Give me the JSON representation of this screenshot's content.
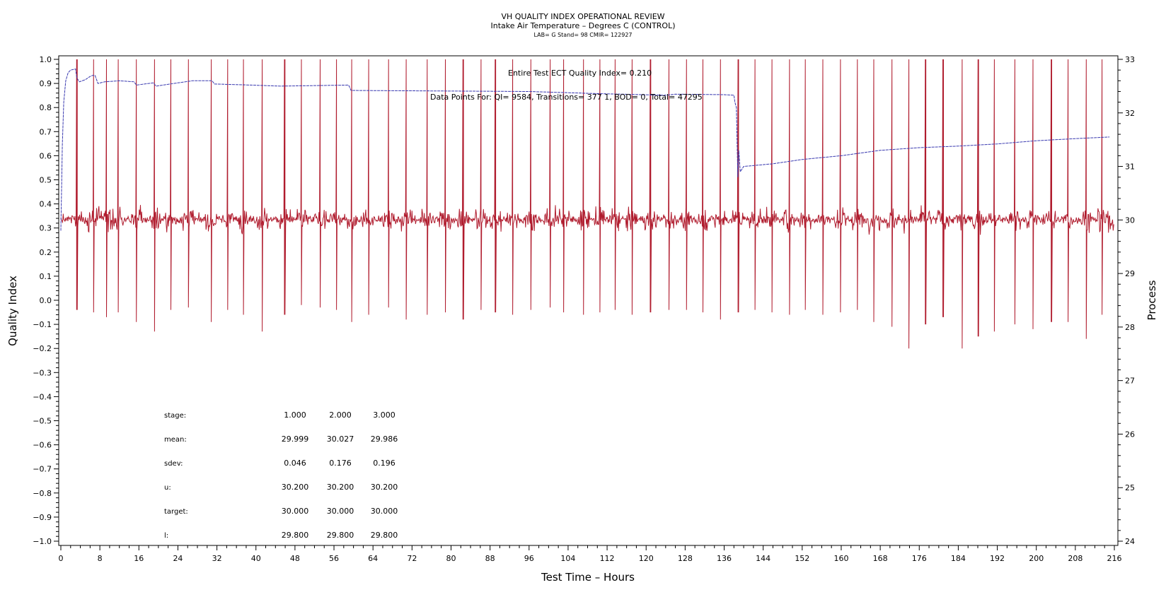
{
  "chart_data": {
    "type": "line",
    "title": "VH QUALITY INDEX OPERATIONAL REVIEW",
    "subtitle": "Intake Air Temperature – Degrees C (CONTROL)",
    "info_line": "LAB= G Stand= 98 CMIR= 122927",
    "xlabel": "Test Time – Hours",
    "ylabel": "Quality Index",
    "y2label": "Process",
    "xlim": [
      0,
      216
    ],
    "ylim": [
      -1.0,
      1.0
    ],
    "y2lim": [
      24,
      33
    ],
    "x_ticks": [
      0,
      8,
      16,
      24,
      32,
      40,
      48,
      56,
      64,
      72,
      80,
      88,
      96,
      104,
      112,
      120,
      128,
      136,
      144,
      152,
      160,
      168,
      176,
      184,
      192,
      200,
      208,
      216
    ],
    "y_ticks": [
      "1.0",
      "0.9",
      "0.8",
      "0.7",
      "0.6",
      "0.5",
      "0.4",
      "0.3",
      "0.2",
      "0.1",
      "0.0",
      "−0.1",
      "−0.2",
      "−0.3",
      "−0.4",
      "−0.5",
      "−0.6",
      "−0.7",
      "−0.8",
      "−0.9",
      "−1.0"
    ],
    "y2_ticks": [
      33,
      32,
      31,
      30,
      29,
      28,
      27,
      26,
      25,
      24
    ],
    "annotations": {
      "quality_index": "Entire Test ECT Quality Index=   0.210",
      "data_points": "Data Points For: QI=  9584, Transitions= 377 1, BOD=     0, Total= 47295"
    },
    "series": [
      {
        "axis": "right",
        "color": "#3a3ab0",
        "points": [
          [
            0,
            29.8
          ],
          [
            0.3,
            31.4
          ],
          [
            0.6,
            32.2
          ],
          [
            1,
            32.6
          ],
          [
            1.5,
            32.75
          ],
          [
            2,
            32.8
          ],
          [
            3,
            32.82
          ],
          [
            3.3,
            32.65
          ],
          [
            3.8,
            32.58
          ],
          [
            5,
            32.62
          ],
          [
            6,
            32.68
          ],
          [
            6.5,
            32.7
          ],
          [
            7,
            32.7
          ],
          [
            7.6,
            32.55
          ],
          [
            9,
            32.58
          ],
          [
            12,
            32.6
          ],
          [
            15,
            32.58
          ],
          [
            15.5,
            32.52
          ],
          [
            19,
            32.56
          ],
          [
            19.5,
            32.5
          ],
          [
            24,
            32.56
          ],
          [
            27,
            32.6
          ],
          [
            31,
            32.6
          ],
          [
            31.5,
            32.54
          ],
          [
            39,
            32.52
          ],
          [
            45,
            32.5
          ],
          [
            59,
            32.52
          ],
          [
            59.5,
            32.42
          ],
          [
            76,
            32.41
          ],
          [
            96,
            32.4
          ],
          [
            110,
            32.36
          ],
          [
            124,
            32.33
          ],
          [
            126,
            32.35
          ],
          [
            136,
            32.34
          ],
          [
            138,
            32.33
          ],
          [
            138.2,
            32.2
          ],
          [
            138.5,
            32.1
          ],
          [
            138.8,
            30.8
          ],
          [
            139,
            31.3
          ],
          [
            139.3,
            30.9
          ],
          [
            140,
            31.0
          ],
          [
            146,
            31.05
          ],
          [
            152,
            31.13
          ],
          [
            160,
            31.2
          ],
          [
            168,
            31.3
          ],
          [
            176,
            31.35
          ],
          [
            184,
            31.38
          ],
          [
            192,
            31.42
          ],
          [
            200,
            31.48
          ],
          [
            208,
            31.52
          ],
          [
            215,
            31.55
          ]
        ]
      },
      {
        "axis": "left",
        "color": "#b01c2e",
        "baseline": 0.335,
        "noise_sd": 0.012,
        "spike_period_hours": 3.5,
        "spike_positions": [
          3.3,
          6.7,
          9.4,
          11.8,
          15.5,
          19.2,
          22.6,
          26.2,
          30.8,
          34.2,
          37.4,
          41.3,
          45.9,
          49.3,
          53.2,
          56.5,
          59.6,
          63.1,
          67.2,
          70.8,
          75.1,
          78.8,
          82.5,
          86.2,
          89.1,
          92.6,
          96.4,
          100.3,
          103.1,
          107.2,
          110.5,
          113.6,
          117.1,
          120.9,
          124.7,
          128.3,
          131.6,
          135.2,
          138.9,
          142.3,
          145.8,
          149.4,
          152.6,
          156.2,
          159.8,
          163.3,
          166.7,
          170.4,
          173.9,
          177.3,
          180.9,
          184.8,
          188.1,
          191.4,
          195.6,
          199.3,
          203.1,
          206.5,
          210.2,
          213.5,
          216.0
        ],
        "spike_min_values": [
          -0.04,
          -0.05,
          -0.07,
          -0.05,
          -0.09,
          -0.13,
          -0.04,
          -0.03,
          -0.09,
          -0.04,
          -0.06,
          -0.13,
          -0.06,
          -0.02,
          -0.03,
          -0.04,
          -0.09,
          -0.06,
          -0.03,
          -0.08,
          -0.06,
          -0.05,
          -0.08,
          -0.04,
          -0.05,
          -0.06,
          -0.04,
          -0.03,
          -0.05,
          -0.06,
          -0.05,
          -0.04,
          -0.06,
          -0.05,
          -0.04,
          -0.04,
          -0.05,
          -0.08,
          -0.05,
          -0.04,
          -0.05,
          -0.06,
          -0.04,
          -0.06,
          -0.05,
          -0.04,
          -0.09,
          -0.11,
          -0.2,
          -0.1,
          -0.07,
          -0.2,
          -0.15,
          -0.13,
          -0.1,
          -0.12,
          -0.09,
          -0.09,
          -0.16,
          -0.06,
          -0.05
        ]
      }
    ],
    "stats_table": {
      "rows": [
        {
          "label": "stage:",
          "values": [
            "1.000",
            "2.000",
            "3.000"
          ]
        },
        {
          "label": "mean:",
          "values": [
            "29.999",
            "30.027",
            "29.986"
          ]
        },
        {
          "label": "sdev:",
          "values": [
            "0.046",
            "0.176",
            "0.196"
          ]
        },
        {
          "label": "u:",
          "values": [
            "30.200",
            "30.200",
            "30.200"
          ]
        },
        {
          "label": "target:",
          "values": [
            "30.000",
            "30.000",
            "30.000"
          ]
        },
        {
          "label": "l:",
          "values": [
            "29.800",
            "29.800",
            "29.800"
          ]
        }
      ]
    },
    "grid": false
  }
}
